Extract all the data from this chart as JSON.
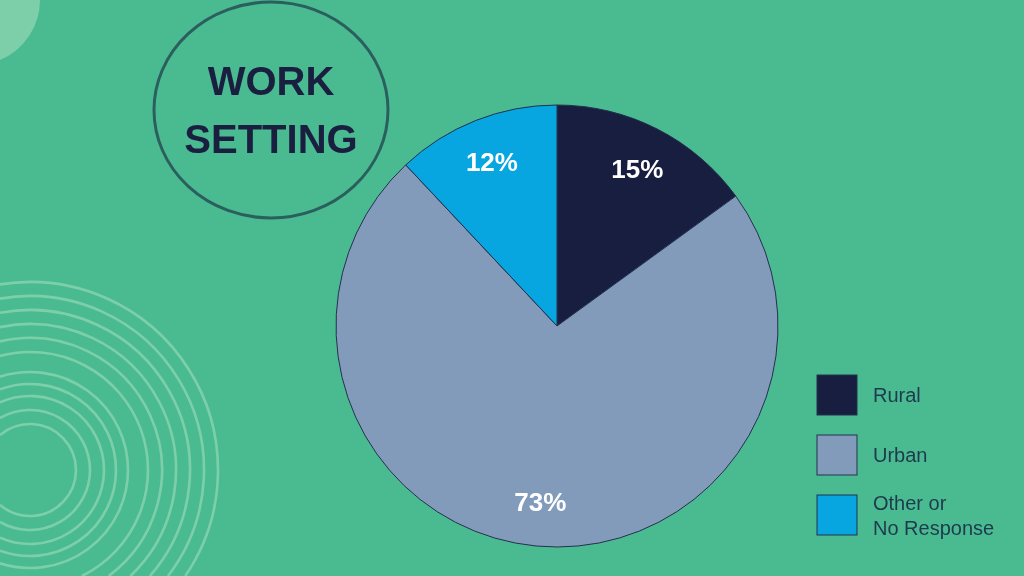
{
  "chart_data": {
    "type": "pie",
    "title": "WORK SETTING",
    "categories": [
      "Rural",
      "Urban",
      "Other or No Response"
    ],
    "values": [
      15,
      73,
      12
    ],
    "colors": [
      "#171e3f",
      "#829bbb",
      "#07a6e0"
    ],
    "value_labels": [
      "15%",
      "73%",
      "12%"
    ],
    "legend": "bottom right"
  }
}
